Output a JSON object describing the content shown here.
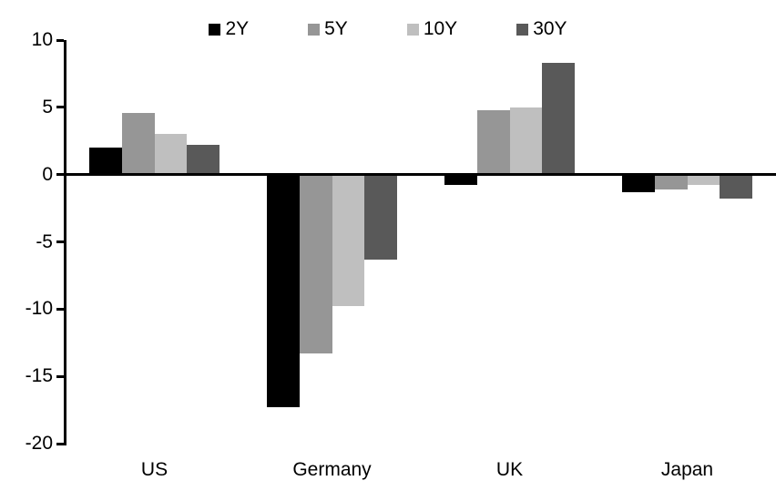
{
  "chart_data": {
    "type": "bar",
    "title": "",
    "xlabel": "",
    "ylabel": "",
    "categories": [
      "US",
      "Germany",
      "UK",
      "Japan"
    ],
    "series": [
      {
        "name": "2Y",
        "color": "#000000",
        "values": [
          2.0,
          -17.3,
          -0.8,
          -1.3
        ]
      },
      {
        "name": "5Y",
        "color": "#969696",
        "values": [
          4.6,
          -13.3,
          4.8,
          -1.1
        ]
      },
      {
        "name": "10Y",
        "color": "#BFBFBF",
        "values": [
          3.0,
          -9.8,
          5.0,
          -0.8
        ]
      },
      {
        "name": "30Y",
        "color": "#595959",
        "values": [
          2.2,
          -6.3,
          8.3,
          -1.8
        ]
      }
    ],
    "yticks": [
      10,
      5,
      0,
      -5,
      -10,
      -15,
      -20
    ],
    "ylim": [
      -20,
      10
    ],
    "grid": false,
    "legend_position": "top",
    "axis_color": "#000000",
    "background_color": "#ffffff"
  }
}
